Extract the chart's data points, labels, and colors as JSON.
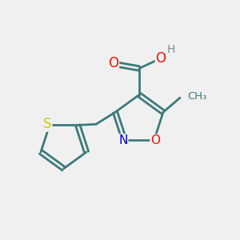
{
  "background_color": "#f0f0f0",
  "bond_color": "#3d7a7a",
  "atom_colors": {
    "O": "#ee1100",
    "N": "#0000cc",
    "S": "#cccc00",
    "H": "#888899",
    "C": "#3d7a7a"
  },
  "figsize": [
    3.0,
    3.0
  ],
  "dpi": 100
}
